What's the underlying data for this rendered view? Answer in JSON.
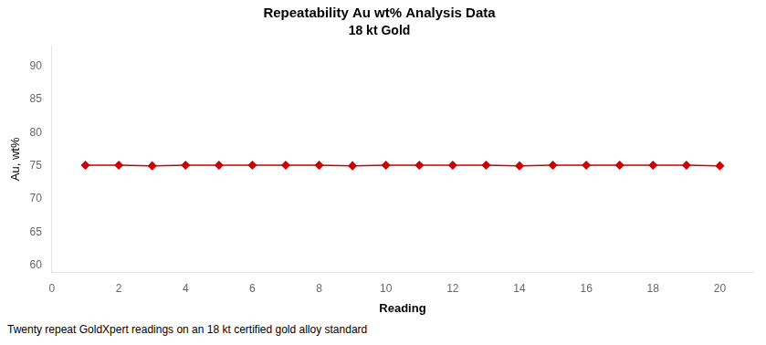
{
  "chart_data": {
    "type": "line",
    "title": "Repeatability Au wt% Analysis Data",
    "subtitle": "18 kt Gold",
    "xlabel": "Reading",
    "ylabel": "Au, wt%",
    "caption": "Twenty repeat GoldXpert readings on an 18 kt certified gold alloy standard",
    "x": [
      1,
      2,
      3,
      4,
      5,
      6,
      7,
      8,
      9,
      10,
      11,
      12,
      13,
      14,
      15,
      16,
      17,
      18,
      19,
      20
    ],
    "values": [
      75.1,
      75.1,
      75.0,
      75.1,
      75.1,
      75.1,
      75.1,
      75.1,
      75.0,
      75.1,
      75.1,
      75.1,
      75.1,
      75.0,
      75.1,
      75.1,
      75.1,
      75.1,
      75.1,
      75.0
    ],
    "color": "#cc0000",
    "marker": "diamond",
    "xlim": [
      0,
      21
    ],
    "ylim": [
      59,
      93
    ],
    "xticks": [
      0,
      2,
      4,
      6,
      8,
      10,
      12,
      14,
      16,
      18,
      20
    ],
    "yticks": [
      60,
      65,
      70,
      75,
      80,
      85,
      90
    ],
    "grid": false
  }
}
